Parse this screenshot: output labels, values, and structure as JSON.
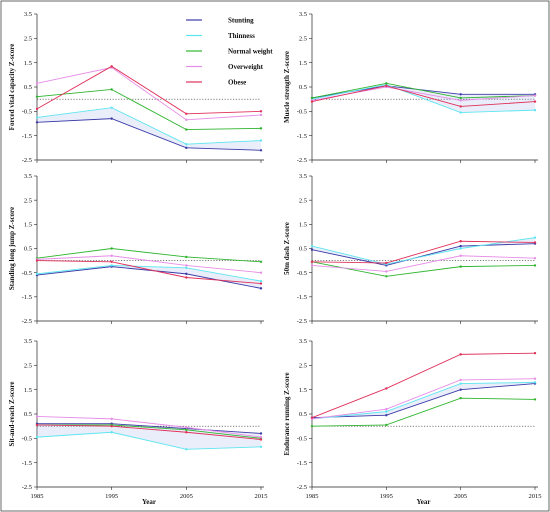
{
  "legend": {
    "items": [
      {
        "label": "Stunting",
        "color": "#3b3ba8"
      },
      {
        "label": "Thinness",
        "color": "#5ee6f0"
      },
      {
        "label": "Normal weight",
        "color": "#2fb52f"
      },
      {
        "label": "Overweight",
        "color": "#e68ee6"
      },
      {
        "label": "Obese",
        "color": "#e0305a"
      }
    ]
  },
  "chart_data": [
    {
      "type": "line",
      "ylabel": "Forced vital capacity Z-score",
      "xlabel": "",
      "x": [
        1985,
        1995,
        2005,
        2015
      ],
      "ylim": [
        -2.5,
        3.5
      ],
      "yticks": [
        "3.5",
        "2.5",
        "1.5",
        "0.5",
        "-0.5",
        "-1.5",
        "-2.5"
      ],
      "xticks": [],
      "series": [
        {
          "name": "Stunting",
          "color": "#3b3ba8",
          "values": [
            -0.95,
            -0.8,
            -2.0,
            -2.1
          ]
        },
        {
          "name": "Thinness",
          "color": "#5ee6f0",
          "values": [
            -0.75,
            -0.35,
            -1.85,
            -1.7
          ]
        },
        {
          "name": "Normal weight",
          "color": "#2fb52f",
          "values": [
            0.1,
            0.4,
            -1.25,
            -1.2
          ]
        },
        {
          "name": "Overweight",
          "color": "#e68ee6",
          "values": [
            0.65,
            1.3,
            -0.85,
            -0.65
          ]
        },
        {
          "name": "Obese",
          "color": "#e0305a",
          "values": [
            -0.4,
            1.35,
            -0.6,
            -0.5
          ]
        }
      ]
    },
    {
      "type": "line",
      "ylabel": "Muscle strength Z-score",
      "xlabel": "",
      "x": [
        1985,
        1995,
        2005,
        2015
      ],
      "ylim": [
        -2.5,
        3.5
      ],
      "yticks": [
        "3.5",
        "2.5",
        "1.5",
        "0.5",
        "-0.5",
        "-1.5",
        "-2.5"
      ],
      "xticks": [],
      "series": [
        {
          "name": "Stunting",
          "color": "#3b3ba8",
          "values": [
            0.05,
            0.55,
            0.2,
            0.2
          ]
        },
        {
          "name": "Thinness",
          "color": "#5ee6f0",
          "values": [
            0.0,
            0.6,
            -0.55,
            -0.45
          ]
        },
        {
          "name": "Normal weight",
          "color": "#2fb52f",
          "values": [
            0.05,
            0.65,
            0.05,
            0.15
          ]
        },
        {
          "name": "Overweight",
          "color": "#e68ee6",
          "values": [
            -0.05,
            0.5,
            -0.05,
            0.15
          ]
        },
        {
          "name": "Obese",
          "color": "#e0305a",
          "values": [
            -0.1,
            0.55,
            -0.3,
            -0.1
          ]
        }
      ]
    },
    {
      "type": "line",
      "ylabel": "Standing long jump Z-score",
      "xlabel": "",
      "x": [
        1985,
        1995,
        2005,
        2015
      ],
      "ylim": [
        -2.5,
        3.5
      ],
      "yticks": [
        "3.5",
        "2.5",
        "1.5",
        "0.5",
        "-0.5",
        "-1.5",
        "-2.5"
      ],
      "xticks": [],
      "series": [
        {
          "name": "Stunting",
          "color": "#3b3ba8",
          "values": [
            -0.6,
            -0.25,
            -0.55,
            -1.15
          ]
        },
        {
          "name": "Thinness",
          "color": "#5ee6f0",
          "values": [
            -0.55,
            -0.2,
            -0.3,
            -0.85
          ]
        },
        {
          "name": "Normal weight",
          "color": "#2fb52f",
          "values": [
            0.1,
            0.5,
            0.15,
            -0.05
          ]
        },
        {
          "name": "Overweight",
          "color": "#e68ee6",
          "values": [
            0.05,
            0.2,
            -0.2,
            -0.5
          ]
        },
        {
          "name": "Obese",
          "color": "#e0305a",
          "values": [
            0.0,
            -0.05,
            -0.7,
            -0.95
          ]
        }
      ]
    },
    {
      "type": "line",
      "ylabel": "50m dash Z-score",
      "xlabel": "",
      "x": [
        1985,
        1995,
        2005,
        2015
      ],
      "ylim": [
        -2.5,
        3.5
      ],
      "yticks": [
        "3.5",
        "2.5",
        "1.5",
        "0.5",
        "-0.5",
        "-1.5",
        "-2.5"
      ],
      "xticks": [],
      "series": [
        {
          "name": "Stunting",
          "color": "#3b3ba8",
          "values": [
            0.45,
            -0.2,
            0.6,
            0.7
          ]
        },
        {
          "name": "Thinness",
          "color": "#5ee6f0",
          "values": [
            0.6,
            -0.15,
            0.5,
            0.95
          ]
        },
        {
          "name": "Normal weight",
          "color": "#2fb52f",
          "values": [
            -0.05,
            -0.65,
            -0.25,
            -0.2
          ]
        },
        {
          "name": "Overweight",
          "color": "#e68ee6",
          "values": [
            -0.2,
            -0.45,
            0.2,
            0.1
          ]
        },
        {
          "name": "Obese",
          "color": "#e0305a",
          "values": [
            -0.05,
            -0.1,
            0.8,
            0.75
          ]
        }
      ]
    },
    {
      "type": "line",
      "ylabel": "Sit-and-reach Z-score",
      "xlabel": "Year",
      "x": [
        1985,
        1995,
        2005,
        2015
      ],
      "ylim": [
        -2.5,
        3.5
      ],
      "yticks": [
        "3.5",
        "2.5",
        "1.5",
        "0.5",
        "-0.5",
        "-1.5",
        "-2.5"
      ],
      "xticks": [
        "1985",
        "1995",
        "2005",
        "2015"
      ],
      "series": [
        {
          "name": "Stunting",
          "color": "#3b3ba8",
          "values": [
            0.1,
            0.1,
            -0.1,
            -0.3
          ]
        },
        {
          "name": "Thinness",
          "color": "#5ee6f0",
          "values": [
            -0.45,
            -0.25,
            -0.95,
            -0.85
          ]
        },
        {
          "name": "Normal weight",
          "color": "#2fb52f",
          "values": [
            0.05,
            0.05,
            -0.15,
            -0.5
          ]
        },
        {
          "name": "Overweight",
          "color": "#e68ee6",
          "values": [
            0.4,
            0.3,
            -0.05,
            -0.45
          ]
        },
        {
          "name": "Obese",
          "color": "#e0305a",
          "values": [
            0.05,
            0.0,
            -0.25,
            -0.55
          ]
        }
      ]
    },
    {
      "type": "line",
      "ylabel": "Endurance running Z-score",
      "xlabel": "Year",
      "x": [
        1985,
        1995,
        2005,
        2015
      ],
      "ylim": [
        -2.5,
        3.5
      ],
      "yticks": [
        "3.5",
        "2.5",
        "1.5",
        "0.5",
        "-0.5",
        "-1.5",
        "-2.5"
      ],
      "xticks": [
        "1985",
        "1995",
        "2005",
        "2015"
      ],
      "series": [
        {
          "name": "Stunting",
          "color": "#3b3ba8",
          "values": [
            0.35,
            0.45,
            1.5,
            1.75
          ]
        },
        {
          "name": "Thinness",
          "color": "#5ee6f0",
          "values": [
            0.3,
            0.6,
            1.75,
            1.8
          ]
        },
        {
          "name": "Normal weight",
          "color": "#2fb52f",
          "values": [
            0.0,
            0.05,
            1.15,
            1.1
          ]
        },
        {
          "name": "Overweight",
          "color": "#e68ee6",
          "values": [
            0.3,
            0.7,
            1.9,
            1.95
          ]
        },
        {
          "name": "Obese",
          "color": "#e0305a",
          "values": [
            0.35,
            1.55,
            2.95,
            3.0
          ]
        }
      ]
    }
  ]
}
